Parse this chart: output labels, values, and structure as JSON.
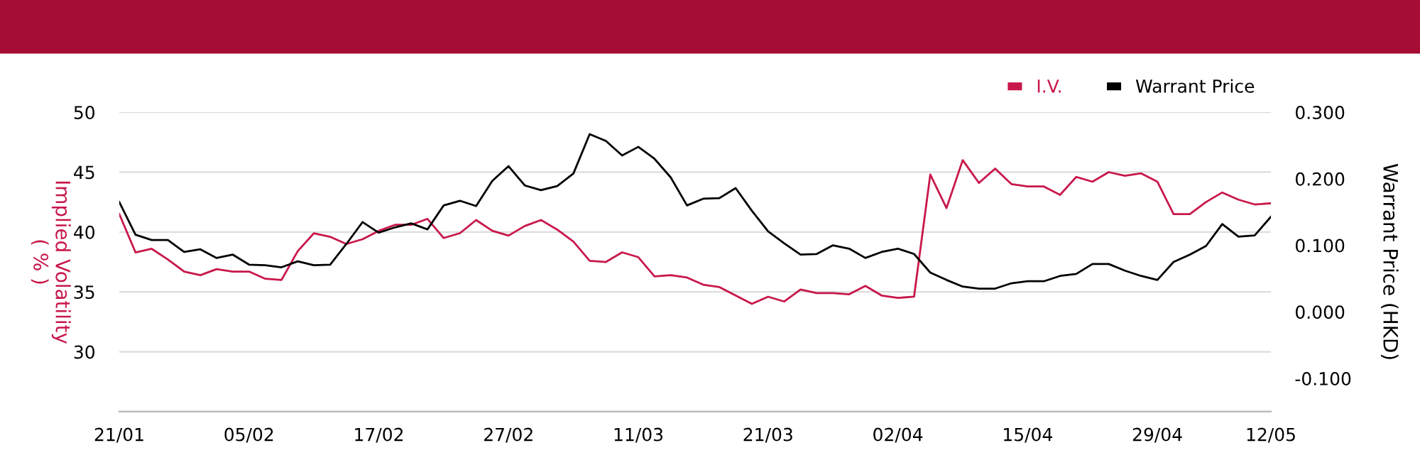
{
  "chart_data": {
    "type": "line",
    "categories": [
      "21/01",
      null,
      null,
      null,
      null,
      null,
      null,
      null,
      "05/02",
      null,
      null,
      null,
      null,
      null,
      null,
      null,
      "17/02",
      null,
      null,
      null,
      null,
      null,
      null,
      null,
      "27/02",
      null,
      null,
      null,
      null,
      null,
      null,
      null,
      "11/03",
      null,
      null,
      null,
      null,
      null,
      null,
      null,
      "21/03",
      null,
      null,
      null,
      null,
      null,
      null,
      null,
      "02/04",
      null,
      null,
      null,
      null,
      null,
      null,
      null,
      "15/04",
      null,
      null,
      null,
      null,
      null,
      null,
      null,
      "29/04",
      null,
      null,
      null,
      null,
      null,
      null,
      "12/05"
    ],
    "series": [
      {
        "name": "I.V.",
        "color": "#c8174a",
        "values": [
          41.5,
          38.3,
          38.6,
          37.7,
          36.7,
          36.4,
          36.9,
          36.7,
          36.7,
          36.1,
          36.0,
          38.4,
          39.9,
          39.6,
          39.0,
          39.4,
          40.1,
          40.6,
          40.6,
          41.1,
          39.5,
          39.9,
          41.0,
          40.1,
          39.7,
          40.5,
          41.0,
          40.2,
          39.2,
          37.6,
          37.5,
          38.3,
          37.9,
          36.3,
          36.4,
          36.2,
          35.6,
          35.4,
          34.7,
          34.0,
          34.6,
          34.2,
          35.2,
          34.9,
          34.9,
          34.8,
          35.5,
          34.7,
          34.5,
          34.6,
          44.8,
          42.0,
          46.0,
          44.1,
          45.3,
          44.0,
          43.8,
          43.8,
          43.1,
          44.6,
          44.2,
          45.0,
          44.7,
          44.9,
          44.2,
          41.5,
          41.5,
          42.5,
          43.3,
          42.7,
          42.3,
          42.4
        ]
      },
      {
        "name": "Warrant Price",
        "color": "#000000",
        "axis": "y2",
        "values": [
          0.165,
          0.116,
          0.108,
          0.108,
          0.09,
          0.094,
          0.081,
          0.086,
          0.071,
          0.07,
          0.067,
          0.076,
          0.07,
          0.071,
          0.102,
          0.135,
          0.119,
          0.127,
          0.133,
          0.124,
          0.16,
          0.167,
          0.159,
          0.197,
          0.219,
          0.19,
          0.183,
          0.189,
          0.208,
          0.267,
          0.257,
          0.235,
          0.248,
          0.23,
          0.202,
          0.16,
          0.17,
          0.171,
          0.186,
          0.152,
          0.121,
          0.103,
          0.086,
          0.087,
          0.1,
          0.095,
          0.081,
          0.09,
          0.095,
          0.087,
          0.059,
          0.048,
          0.038,
          0.035,
          0.035,
          0.043,
          0.046,
          0.046,
          0.054,
          0.057,
          0.072,
          0.072,
          0.062,
          0.054,
          0.048,
          0.075,
          0.086,
          0.099,
          0.132,
          0.113,
          0.115,
          0.143
        ]
      }
    ],
    "ylabel": "Implied Volatility\n( % )",
    "y2label": "Warrant Price (HKD)",
    "ylim": [
      25,
      50
    ],
    "yticks": [
      30,
      35,
      40,
      45,
      50
    ],
    "y2lim": [
      -0.15,
      0.3
    ],
    "y2ticks": [
      {
        "value": -0.1,
        "label": "-0.100"
      },
      {
        "value": 0,
        "label": "0.000"
      },
      {
        "value": 0.1,
        "label": "0.100"
      },
      {
        "value": 0.2,
        "label": "0.200"
      },
      {
        "value": 0.3,
        "label": "0.300"
      }
    ],
    "grid": "y",
    "legend": "top right",
    "marker": "none",
    "line_style": "solid"
  }
}
